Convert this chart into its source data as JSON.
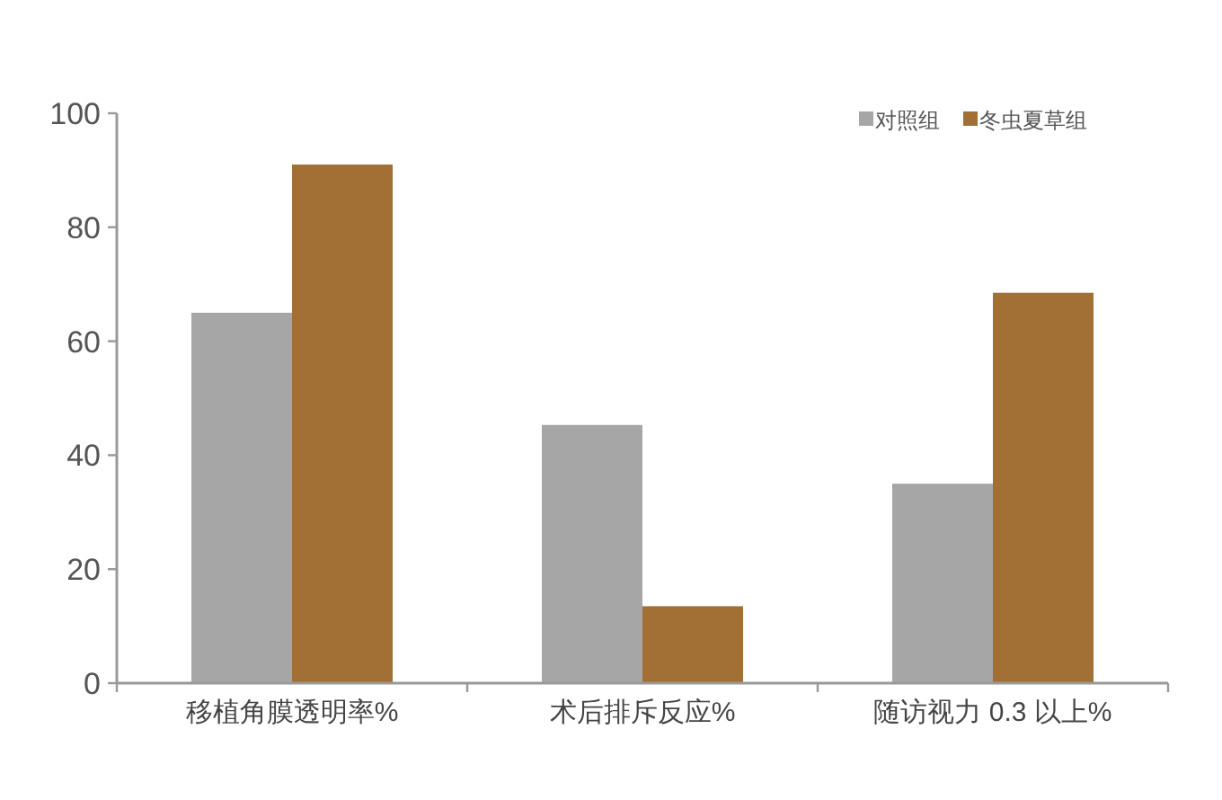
{
  "chart_data": {
    "type": "bar",
    "categories": [
      "移植角膜透明率%",
      "术后排斥反应%",
      "随访视力 0.3 以上%"
    ],
    "series": [
      {
        "name": "对照组",
        "color": "#a6a6a6",
        "values": [
          65,
          45.3,
          35
        ]
      },
      {
        "name": "冬虫夏草组",
        "color": "#a27035",
        "values": [
          91,
          13.5,
          68.5
        ]
      }
    ],
    "ylim": [
      0,
      100
    ],
    "yticks": [
      0,
      20,
      40,
      60,
      80,
      100
    ],
    "grid": false,
    "legend": "top right"
  }
}
